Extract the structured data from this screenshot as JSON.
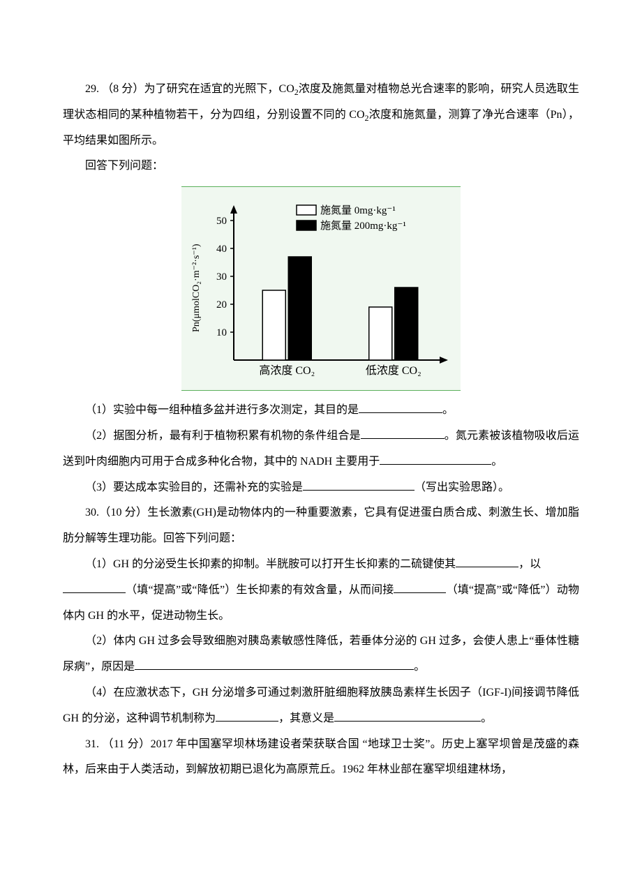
{
  "q29": {
    "prefix": "29.  （8 分）为了研究在适宜的光照下，CO",
    "sub1": "2",
    "mid1": "浓度及施氮量对植物总光合速率的影响，研究人员选取生理状态相同的某种植物若干，分为四组，分别设置不同的 CO",
    "sub2": "2",
    "tail": "浓度和施氮量，测算了净光合速率（Pn），平均结果如图所示。",
    "answer_prompt": "回答下列问题：",
    "p1_a": "（1）实验中每一组种植多盆并进行多次测定，其目的是",
    "p1_b": "。",
    "p2_a": "（2）据图分析，最有利于植物积累有机物的条件组合是",
    "p2_b": "。氮元素被该植物吸收后运送到叶肉细胞内可用于合成多种化合物，其中的 NADH 主要用于",
    "p2_c": "。",
    "p3_a": "（3）要达成本实验目的，还需补充的实验是",
    "p3_b": "（写出实验思路）。"
  },
  "chart": {
    "type": "bar",
    "ylabel": "Pn(μmolCO₂·m⁻²·s⁻¹)",
    "ylabel_fontsize": 14,
    "xticks": [
      "高浓度 CO₂",
      "低浓度 CO₂"
    ],
    "legend": [
      "施氮量 0mg·kg⁻¹",
      "施氮量 200mg·kg⁻¹"
    ],
    "legend_fontsize": 15,
    "yticks": [
      10,
      20,
      30,
      40,
      50
    ],
    "ymax": 55,
    "series": [
      {
        "label": "0mg",
        "color": "#ffffff",
        "stroke": "#000000",
        "values": [
          25,
          19
        ]
      },
      {
        "label": "200mg",
        "color": "#000000",
        "stroke": "#000000",
        "values": [
          37,
          26
        ]
      }
    ],
    "bg": "#f0f8f0",
    "axis_color": "#000000",
    "border_color": "#5ab05a"
  },
  "q30_intro": "30.（10 分）生长激素(GH)是动物体内的一种重要激素，它具有促进蛋白质合成、刺激生长、增加脂肪分解等生理功能。回答下列问题：",
  "q30_p1_a": "（1）GH 的分泌受生长抑素的抑制。半胱胺可以打开生长抑素的二硫键使其",
  "q30_p1_b": "，以",
  "q30_p1_c": "（填“提高”或“降低”）生长抑素的有效含量，从而间接",
  "q30_p1_d": "（填“提高”或“降低”）动物体内 GH 的水平，促进动物生长。",
  "q30_p2_a": "（2）体内 GH 过多会导致细胞对胰岛素敏感性降低，若垂体分泌的 GH 过多，会使人患上“垂体性糖尿病”，原因是",
  "q30_p2_b": "。",
  "q30_p4_a": "（4）在应激状态下，GH 分泌增多可通过刺激肝脏细胞释放胰岛素样生长因子（IGF-I)间接调节降低 GH 的分泌，这种调节机制称为",
  "q30_p4_b": "，其意义是",
  "q30_p4_c": "。",
  "q31": "31.  （11 分）2017 年中国塞罕坝林场建设者荣获联合国  “地球卫士奖”。历史上塞罕坝曾是茂盛的森林，后来由于人类活动，到解放初期已退化为高原荒丘。1962 年林业部在塞罕坝组建林场，"
}
